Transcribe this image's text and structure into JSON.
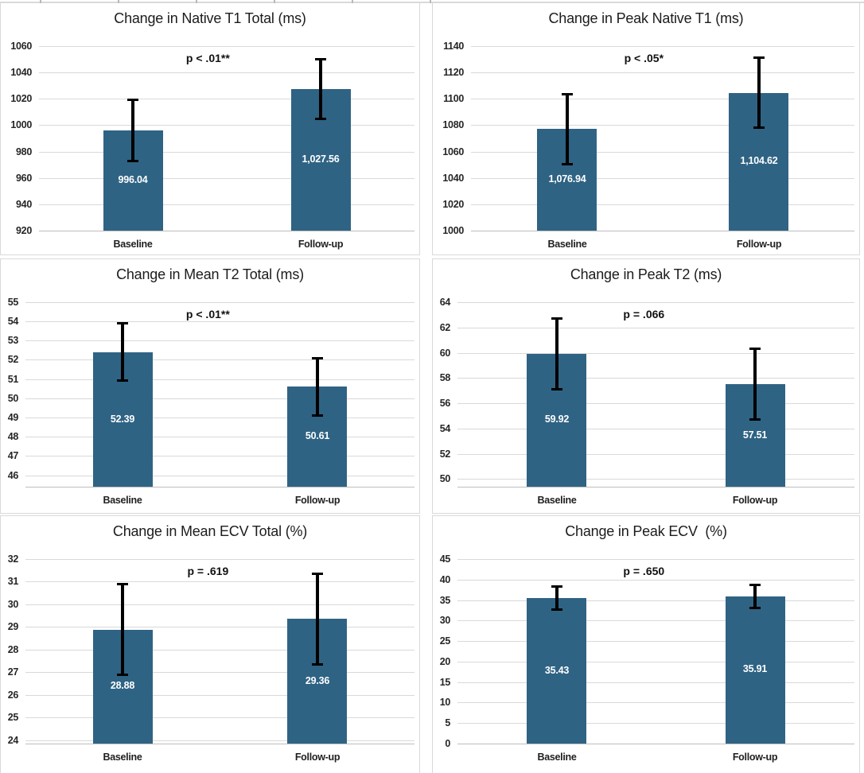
{
  "colors": {
    "bar": "#2F6384",
    "error_bar": "#000000",
    "gridline": "#d9d9d9",
    "axis_line": "#bdbdbd",
    "title_text": "#1c1c1c",
    "value_label_text": "#ffffff",
    "background": "#ffffff"
  },
  "chart_data": [
    {
      "type": "bar",
      "title": "Change in Native T1 Total (ms)",
      "p_label": "p < .01**",
      "categories": [
        "Baseline",
        "Follow-up"
      ],
      "values": [
        996.04,
        1027.56
      ],
      "value_labels": [
        "996.04",
        "1,027.56"
      ],
      "error_low": [
        972.0,
        1004.0
      ],
      "error_high": [
        1020.0,
        1051.0
      ],
      "yticks": [
        920,
        940,
        960,
        980,
        1000,
        1020,
        1040,
        1060
      ],
      "ylim": [
        920,
        1060
      ],
      "grid": true,
      "legend": false
    },
    {
      "type": "bar",
      "title": "Change in Peak Native T1 (ms)",
      "p_label": "p < .05*",
      "categories": [
        "Baseline",
        "Follow-up"
      ],
      "values": [
        1076.94,
        1104.62
      ],
      "value_labels": [
        "1,076.94",
        "1,104.62"
      ],
      "error_low": [
        1049.7,
        1077.3
      ],
      "error_high": [
        1104.2,
        1131.9
      ],
      "yticks": [
        1000,
        1020,
        1040,
        1060,
        1080,
        1100,
        1120,
        1140
      ],
      "ylim": [
        1000,
        1140
      ],
      "grid": true,
      "legend": false
    },
    {
      "type": "bar",
      "title": "Change in Mean T2 Total (ms)",
      "p_label": "p < .01**",
      "categories": [
        "Baseline",
        "Follow-up"
      ],
      "values": [
        52.39,
        50.61
      ],
      "value_labels": [
        "52.39",
        "50.61"
      ],
      "error_low": [
        50.85,
        49.05
      ],
      "error_high": [
        53.95,
        52.15
      ],
      "yticks": [
        46,
        47,
        48,
        49,
        50,
        51,
        52,
        53,
        54,
        55
      ],
      "ylim": [
        45.4,
        55
      ],
      "grid": true,
      "legend": false
    },
    {
      "type": "bar",
      "title": "Change in Peak T2 (ms)",
      "p_label": "p = .066",
      "categories": [
        "Baseline",
        "Follow-up"
      ],
      "values": [
        59.92,
        57.51
      ],
      "value_labels": [
        "59.92",
        "57.51"
      ],
      "error_low": [
        57.0,
        54.6
      ],
      "error_high": [
        62.8,
        60.4
      ],
      "yticks": [
        50,
        52,
        54,
        56,
        58,
        60,
        62,
        64
      ],
      "ylim": [
        49.4,
        64
      ],
      "grid": true,
      "legend": false
    },
    {
      "type": "bar",
      "title": "Change in Mean ECV Total (%)",
      "p_label": "p = .619",
      "categories": [
        "Baseline",
        "Follow-up"
      ],
      "values": [
        28.88,
        29.36
      ],
      "value_labels": [
        "28.88",
        "29.36"
      ],
      "error_low": [
        26.85,
        27.3
      ],
      "error_high": [
        30.95,
        31.4
      ],
      "yticks": [
        24,
        25,
        26,
        27,
        28,
        29,
        30,
        31,
        32
      ],
      "ylim": [
        23.85,
        32
      ],
      "grid": true,
      "legend": false
    },
    {
      "type": "bar",
      "title": "Change in Peak ECV  (%)",
      "p_label": "p = .650",
      "categories": [
        "Baseline",
        "Follow-up"
      ],
      "values": [
        35.43,
        35.91
      ],
      "value_labels": [
        "35.43",
        "35.91"
      ],
      "error_low": [
        32.3,
        32.85
      ],
      "error_high": [
        38.6,
        39.05
      ],
      "yticks": [
        0,
        5,
        10,
        15,
        20,
        25,
        30,
        35,
        40,
        45
      ],
      "ylim": [
        0,
        45
      ],
      "grid": true,
      "legend": false
    }
  ]
}
